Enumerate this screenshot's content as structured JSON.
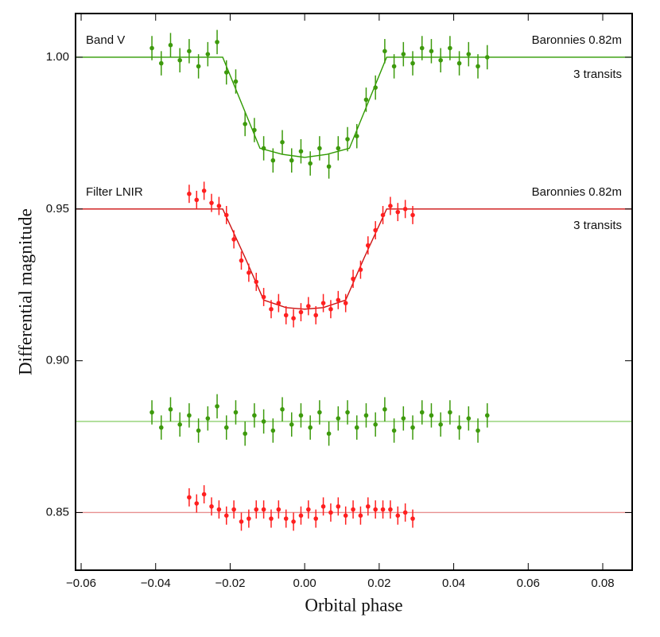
{
  "chart_data": {
    "type": "scatter",
    "xlabel": "Orbital phase",
    "ylabel": "Differential magnitude",
    "xlim": [
      -0.0615,
      0.0879
    ],
    "ylim": [
      0.831,
      1.0144
    ],
    "xticks": [
      {
        "value": -0.06,
        "label": "−0.06"
      },
      {
        "value": -0.04,
        "label": "−0.04"
      },
      {
        "value": -0.02,
        "label": "−0.02"
      },
      {
        "value": 0,
        "label": "0.00"
      },
      {
        "value": 0.02,
        "label": "0.02"
      },
      {
        "value": 0.04,
        "label": "0.04"
      },
      {
        "value": 0.06,
        "label": "0.06"
      },
      {
        "value": 0.08,
        "label": "0.08"
      }
    ],
    "yticks": [
      {
        "value": 0.85,
        "label": "0.85"
      },
      {
        "value": 0.9,
        "label": "0.90"
      },
      {
        "value": 0.95,
        "label": "0.95"
      },
      {
        "value": 1.0,
        "label": "1.00"
      }
    ],
    "annotations": [
      "Band V",
      "Baronnies 0.82m",
      "3 transits",
      "Filter LNIR",
      "Baronnies 0.82m",
      "3 transits"
    ],
    "series": [
      {
        "mode": "line",
        "color": "#2f9a00",
        "x": [
          -0.0615,
          -0.022,
          -0.017,
          -0.012,
          -0.006,
          0,
          0.006,
          0.012,
          0.017,
          0.022,
          0.0879
        ],
        "values": [
          1.0,
          1.0,
          0.985,
          0.97,
          0.968,
          0.967,
          0.968,
          0.97,
          0.985,
          1.0,
          1.0
        ]
      },
      {
        "mode": "line",
        "color": "#cc1010",
        "x": [
          -0.0615,
          -0.022,
          -0.016,
          -0.011,
          -0.005,
          0,
          0.005,
          0.011,
          0.016,
          0.022,
          0.0879
        ],
        "values": [
          0.95,
          0.95,
          0.934,
          0.92,
          0.9175,
          0.917,
          0.9175,
          0.92,
          0.934,
          0.95,
          0.95
        ]
      },
      {
        "mode": "line",
        "color": "#8fd070",
        "x": [
          -0.0615,
          0.0879
        ],
        "values": [
          0.88,
          0.88
        ]
      },
      {
        "mode": "line",
        "color": "#e89090",
        "x": [
          -0.0615,
          0.0879
        ],
        "values": [
          0.85,
          0.85
        ]
      },
      {
        "mode": "points",
        "color": "#3d9a0c",
        "error": 0.004,
        "x": [
          -0.041,
          -0.0385,
          -0.036,
          -0.0335,
          -0.031,
          -0.0285,
          -0.026,
          -0.0235,
          -0.021,
          -0.0185,
          -0.016,
          -0.0135,
          -0.011,
          -0.0085,
          -0.006,
          -0.0035,
          -0.001,
          0.0015,
          0.004,
          0.0065,
          0.009,
          0.0115,
          0.014,
          0.0165,
          0.019,
          0.0215,
          0.024,
          0.0265,
          0.029,
          0.0315,
          0.034,
          0.0365,
          0.039,
          0.0415,
          0.044,
          0.0465,
          0.049
        ],
        "values": [
          1.003,
          0.998,
          1.004,
          0.999,
          1.002,
          0.997,
          1.001,
          1.005,
          0.995,
          0.992,
          0.978,
          0.976,
          0.97,
          0.966,
          0.972,
          0.966,
          0.969,
          0.965,
          0.97,
          0.964,
          0.97,
          0.973,
          0.974,
          0.986,
          0.99,
          1.002,
          0.997,
          1.001,
          0.998,
          1.003,
          1.002,
          0.999,
          1.003,
          0.998,
          1.001,
          0.997,
          1.0
        ]
      },
      {
        "mode": "points",
        "color": "#ff1f1f",
        "error": 0.003,
        "x": [
          -0.031,
          -0.029,
          -0.027,
          -0.025,
          -0.023,
          -0.021,
          -0.019,
          -0.017,
          -0.015,
          -0.013,
          -0.011,
          -0.009,
          -0.007,
          -0.005,
          -0.003,
          -0.001,
          0.001,
          0.003,
          0.005,
          0.007,
          0.009,
          0.011,
          0.013,
          0.015,
          0.017,
          0.019,
          0.021,
          0.023,
          0.025,
          0.027,
          0.029
        ],
        "values": [
          0.955,
          0.953,
          0.956,
          0.952,
          0.951,
          0.948,
          0.94,
          0.933,
          0.929,
          0.926,
          0.921,
          0.917,
          0.919,
          0.915,
          0.914,
          0.916,
          0.918,
          0.915,
          0.919,
          0.917,
          0.92,
          0.919,
          0.927,
          0.93,
          0.938,
          0.943,
          0.948,
          0.951,
          0.949,
          0.95,
          0.948
        ]
      },
      {
        "mode": "points",
        "color": "#3d9a0c",
        "error": 0.004,
        "x": [
          -0.041,
          -0.0385,
          -0.036,
          -0.0335,
          -0.031,
          -0.0285,
          -0.026,
          -0.0235,
          -0.021,
          -0.0185,
          -0.016,
          -0.0135,
          -0.011,
          -0.0085,
          -0.006,
          -0.0035,
          -0.001,
          0.0015,
          0.004,
          0.0065,
          0.009,
          0.0115,
          0.014,
          0.0165,
          0.019,
          0.0215,
          0.024,
          0.0265,
          0.029,
          0.0315,
          0.034,
          0.0365,
          0.039,
          0.0415,
          0.044,
          0.0465,
          0.049
        ],
        "values": [
          0.883,
          0.878,
          0.884,
          0.879,
          0.882,
          0.877,
          0.881,
          0.885,
          0.878,
          0.883,
          0.876,
          0.882,
          0.88,
          0.877,
          0.884,
          0.879,
          0.882,
          0.878,
          0.883,
          0.876,
          0.881,
          0.883,
          0.878,
          0.882,
          0.879,
          0.884,
          0.877,
          0.881,
          0.878,
          0.883,
          0.882,
          0.879,
          0.883,
          0.878,
          0.881,
          0.877,
          0.882
        ]
      },
      {
        "mode": "points",
        "color": "#ff1f1f",
        "error": 0.003,
        "x": [
          -0.031,
          -0.029,
          -0.027,
          -0.025,
          -0.023,
          -0.021,
          -0.019,
          -0.017,
          -0.015,
          -0.013,
          -0.011,
          -0.009,
          -0.007,
          -0.005,
          -0.003,
          -0.001,
          0.001,
          0.003,
          0.005,
          0.007,
          0.009,
          0.011,
          0.013,
          0.015,
          0.017,
          0.019,
          0.021,
          0.023,
          0.025,
          0.027,
          0.029
        ],
        "values": [
          0.855,
          0.853,
          0.856,
          0.852,
          0.851,
          0.849,
          0.851,
          0.847,
          0.848,
          0.851,
          0.851,
          0.848,
          0.851,
          0.848,
          0.847,
          0.849,
          0.851,
          0.848,
          0.852,
          0.85,
          0.852,
          0.849,
          0.851,
          0.849,
          0.852,
          0.851,
          0.851,
          0.851,
          0.849,
          0.85,
          0.848
        ]
      }
    ]
  }
}
